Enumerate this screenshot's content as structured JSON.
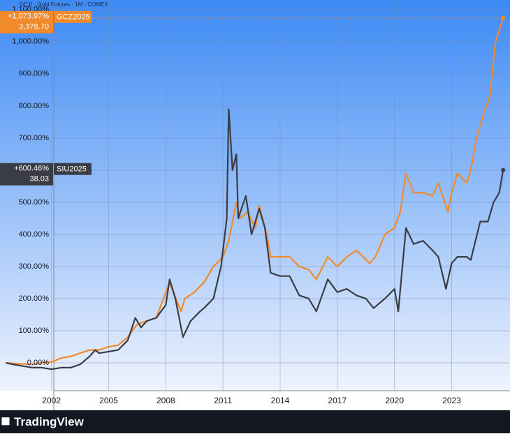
{
  "chart_data": {
    "type": "line",
    "header": "GC1! · Gold Futures · 1M · COMEX",
    "xlim": [
      1999.3,
      2026.06
    ],
    "xticks": [
      2002,
      2005,
      2008,
      2011,
      2014,
      2017,
      2020,
      2023
    ],
    "ylim": [
      -87,
      1130
    ],
    "yticks": [
      {
        "value": 0,
        "label": "0.00%"
      },
      {
        "value": 100,
        "label": "100.00%"
      },
      {
        "value": 200,
        "label": "200.00%"
      },
      {
        "value": 300,
        "label": "300.00%"
      },
      {
        "value": 400,
        "label": "400.00%"
      },
      {
        "value": 500,
        "label": "500.00%"
      },
      {
        "value": 600,
        "label": "600.00%"
      },
      {
        "value": 700,
        "label": "700.00%"
      },
      {
        "value": 800,
        "label": "800.00%"
      },
      {
        "value": 900,
        "label": "900.00%"
      },
      {
        "value": 1000,
        "label": "1,000.00%"
      },
      {
        "value": 1100,
        "label": "1,100.00%"
      }
    ],
    "grid": true,
    "series": [
      {
        "name": "GCZ2025",
        "color": "#f08a2c",
        "last_change_label": "+1,073.97%",
        "last_price": "3,378.70",
        "x": [
          1999.6,
          2000,
          2001,
          2001.5,
          2002,
          2002.5,
          2003,
          2003.5,
          2004,
          2004.5,
          2005,
          2005.5,
          2006,
          2006.5,
          2007,
          2007.5,
          2008,
          2008.2,
          2008.8,
          2009,
          2009.5,
          2010,
          2010.5,
          2011,
          2011.3,
          2011.7,
          2011.9,
          2012.3,
          2012.7,
          2012.9,
          2013.3,
          2013.5,
          2014,
          2014.5,
          2015,
          2015.5,
          2015.9,
          2016.5,
          2017,
          2017.5,
          2018,
          2018.7,
          2019,
          2019.5,
          2020,
          2020.3,
          2020.6,
          2021,
          2021.5,
          2022,
          2022.3,
          2022.8,
          2023,
          2023.3,
          2023.8,
          2024,
          2024.3,
          2024.7,
          2025,
          2025.3,
          2025.7
        ],
        "values": [
          0,
          -2,
          -5,
          0,
          2,
          15,
          20,
          30,
          40,
          40,
          50,
          55,
          80,
          120,
          130,
          140,
          220,
          250,
          160,
          200,
          220,
          250,
          300,
          330,
          380,
          500,
          450,
          470,
          420,
          490,
          400,
          330,
          330,
          330,
          300,
          290,
          260,
          330,
          300,
          330,
          350,
          310,
          330,
          400,
          420,
          470,
          590,
          530,
          530,
          520,
          560,
          470,
          530,
          590,
          560,
          600,
          700,
          780,
          830,
          1000,
          1073.97
        ]
      },
      {
        "name": "SIU2025",
        "color": "#3a3d45",
        "last_change_label": "+600.46%",
        "last_price": "38.03",
        "x": [
          1999.6,
          2000,
          2001,
          2001.5,
          2002,
          2002.5,
          2003,
          2003.5,
          2004,
          2004.3,
          2004.5,
          2005,
          2005.5,
          2006,
          2006.4,
          2006.7,
          2007,
          2007.5,
          2008,
          2008.2,
          2008.5,
          2008.9,
          2009.3,
          2009.8,
          2010,
          2010.5,
          2010.9,
          2011.2,
          2011.3,
          2011.5,
          2011.7,
          2011.8,
          2012.2,
          2012.5,
          2012.9,
          2013.2,
          2013.5,
          2014,
          2014.5,
          2015,
          2015.5,
          2015.9,
          2016.5,
          2017,
          2017.5,
          2018,
          2018.5,
          2018.9,
          2019.5,
          2020,
          2020.2,
          2020.6,
          2021,
          2021.5,
          2022,
          2022.3,
          2022.7,
          2023,
          2023.3,
          2023.8,
          2024,
          2024.5,
          2024.9,
          2025.2,
          2025.5,
          2025.7
        ],
        "values": [
          0,
          -5,
          -15,
          -15,
          -20,
          -15,
          -15,
          -5,
          20,
          40,
          30,
          35,
          40,
          70,
          140,
          110,
          130,
          140,
          180,
          260,
          200,
          80,
          130,
          160,
          170,
          200,
          300,
          450,
          790,
          600,
          650,
          450,
          520,
          400,
          480,
          420,
          280,
          270,
          270,
          210,
          200,
          160,
          260,
          220,
          230,
          210,
          200,
          170,
          200,
          230,
          160,
          420,
          370,
          380,
          350,
          330,
          230,
          310,
          330,
          330,
          320,
          440,
          440,
          500,
          530,
          600.46
        ]
      }
    ]
  },
  "footer": {
    "brand": "TradingView"
  }
}
